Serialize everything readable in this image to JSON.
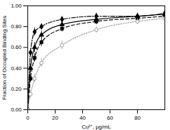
{
  "chart_data": {
    "type": "line",
    "x_label": "Cu²⁺, µg/mL",
    "y_label": "Fraction of Occupied Binding Sites",
    "x": [
      0,
      2,
      5,
      10,
      25,
      50,
      80,
      100
    ],
    "series": [
      {
        "color": "#000000",
        "marker": "diamond",
        "line_style": "dashdot",
        "values": [
          0,
          0.55,
          0.75,
          0.8,
          0.87,
          0.9,
          0.9,
          0.93
        ],
        "errors": [
          0,
          0.04,
          0.04,
          0.03,
          0.03,
          0.03,
          0.03,
          0.03
        ]
      },
      {
        "color": "#000000",
        "marker": "triangle",
        "line_style": "solid",
        "values": [
          0,
          0.4,
          0.6,
          0.72,
          0.82,
          0.87,
          0.9,
          0.92
        ],
        "errors": [
          0,
          0.04,
          0.05,
          0.04,
          0.03,
          0.03,
          0.03,
          0.03
        ]
      },
      {
        "color": "#000000",
        "marker": "square",
        "line_style": "dashed",
        "values": [
          0,
          0.3,
          0.5,
          0.65,
          0.78,
          0.85,
          0.88,
          0.9
        ],
        "errors": [
          0,
          0.03,
          0.04,
          0.04,
          0.03,
          0.03,
          0.03,
          0.03
        ]
      },
      {
        "color": "#999999",
        "marker": "circle",
        "line_style": "dotted",
        "values": [
          0,
          0.15,
          0.3,
          0.45,
          0.62,
          0.77,
          0.85,
          0.88
        ],
        "errors": [
          0,
          0.03,
          0.04,
          0.04,
          0.04,
          0.03,
          0.03,
          0.03
        ]
      }
    ],
    "xlim": [
      0,
      100
    ],
    "xticks": [
      0,
      20,
      40,
      60,
      80
    ],
    "ylim": [
      0,
      1
    ],
    "yticks": [
      {
        "value": 0,
        "label": "0.00"
      },
      {
        "value": 0.2,
        "label": "0.20"
      },
      {
        "value": 0.4,
        "label": "0.40"
      },
      {
        "value": 0.6,
        "label": "0.60"
      },
      {
        "value": 0.8,
        "label": "0.80"
      },
      {
        "value": 1,
        "label": "1.00"
      }
    ],
    "grid": false
  }
}
